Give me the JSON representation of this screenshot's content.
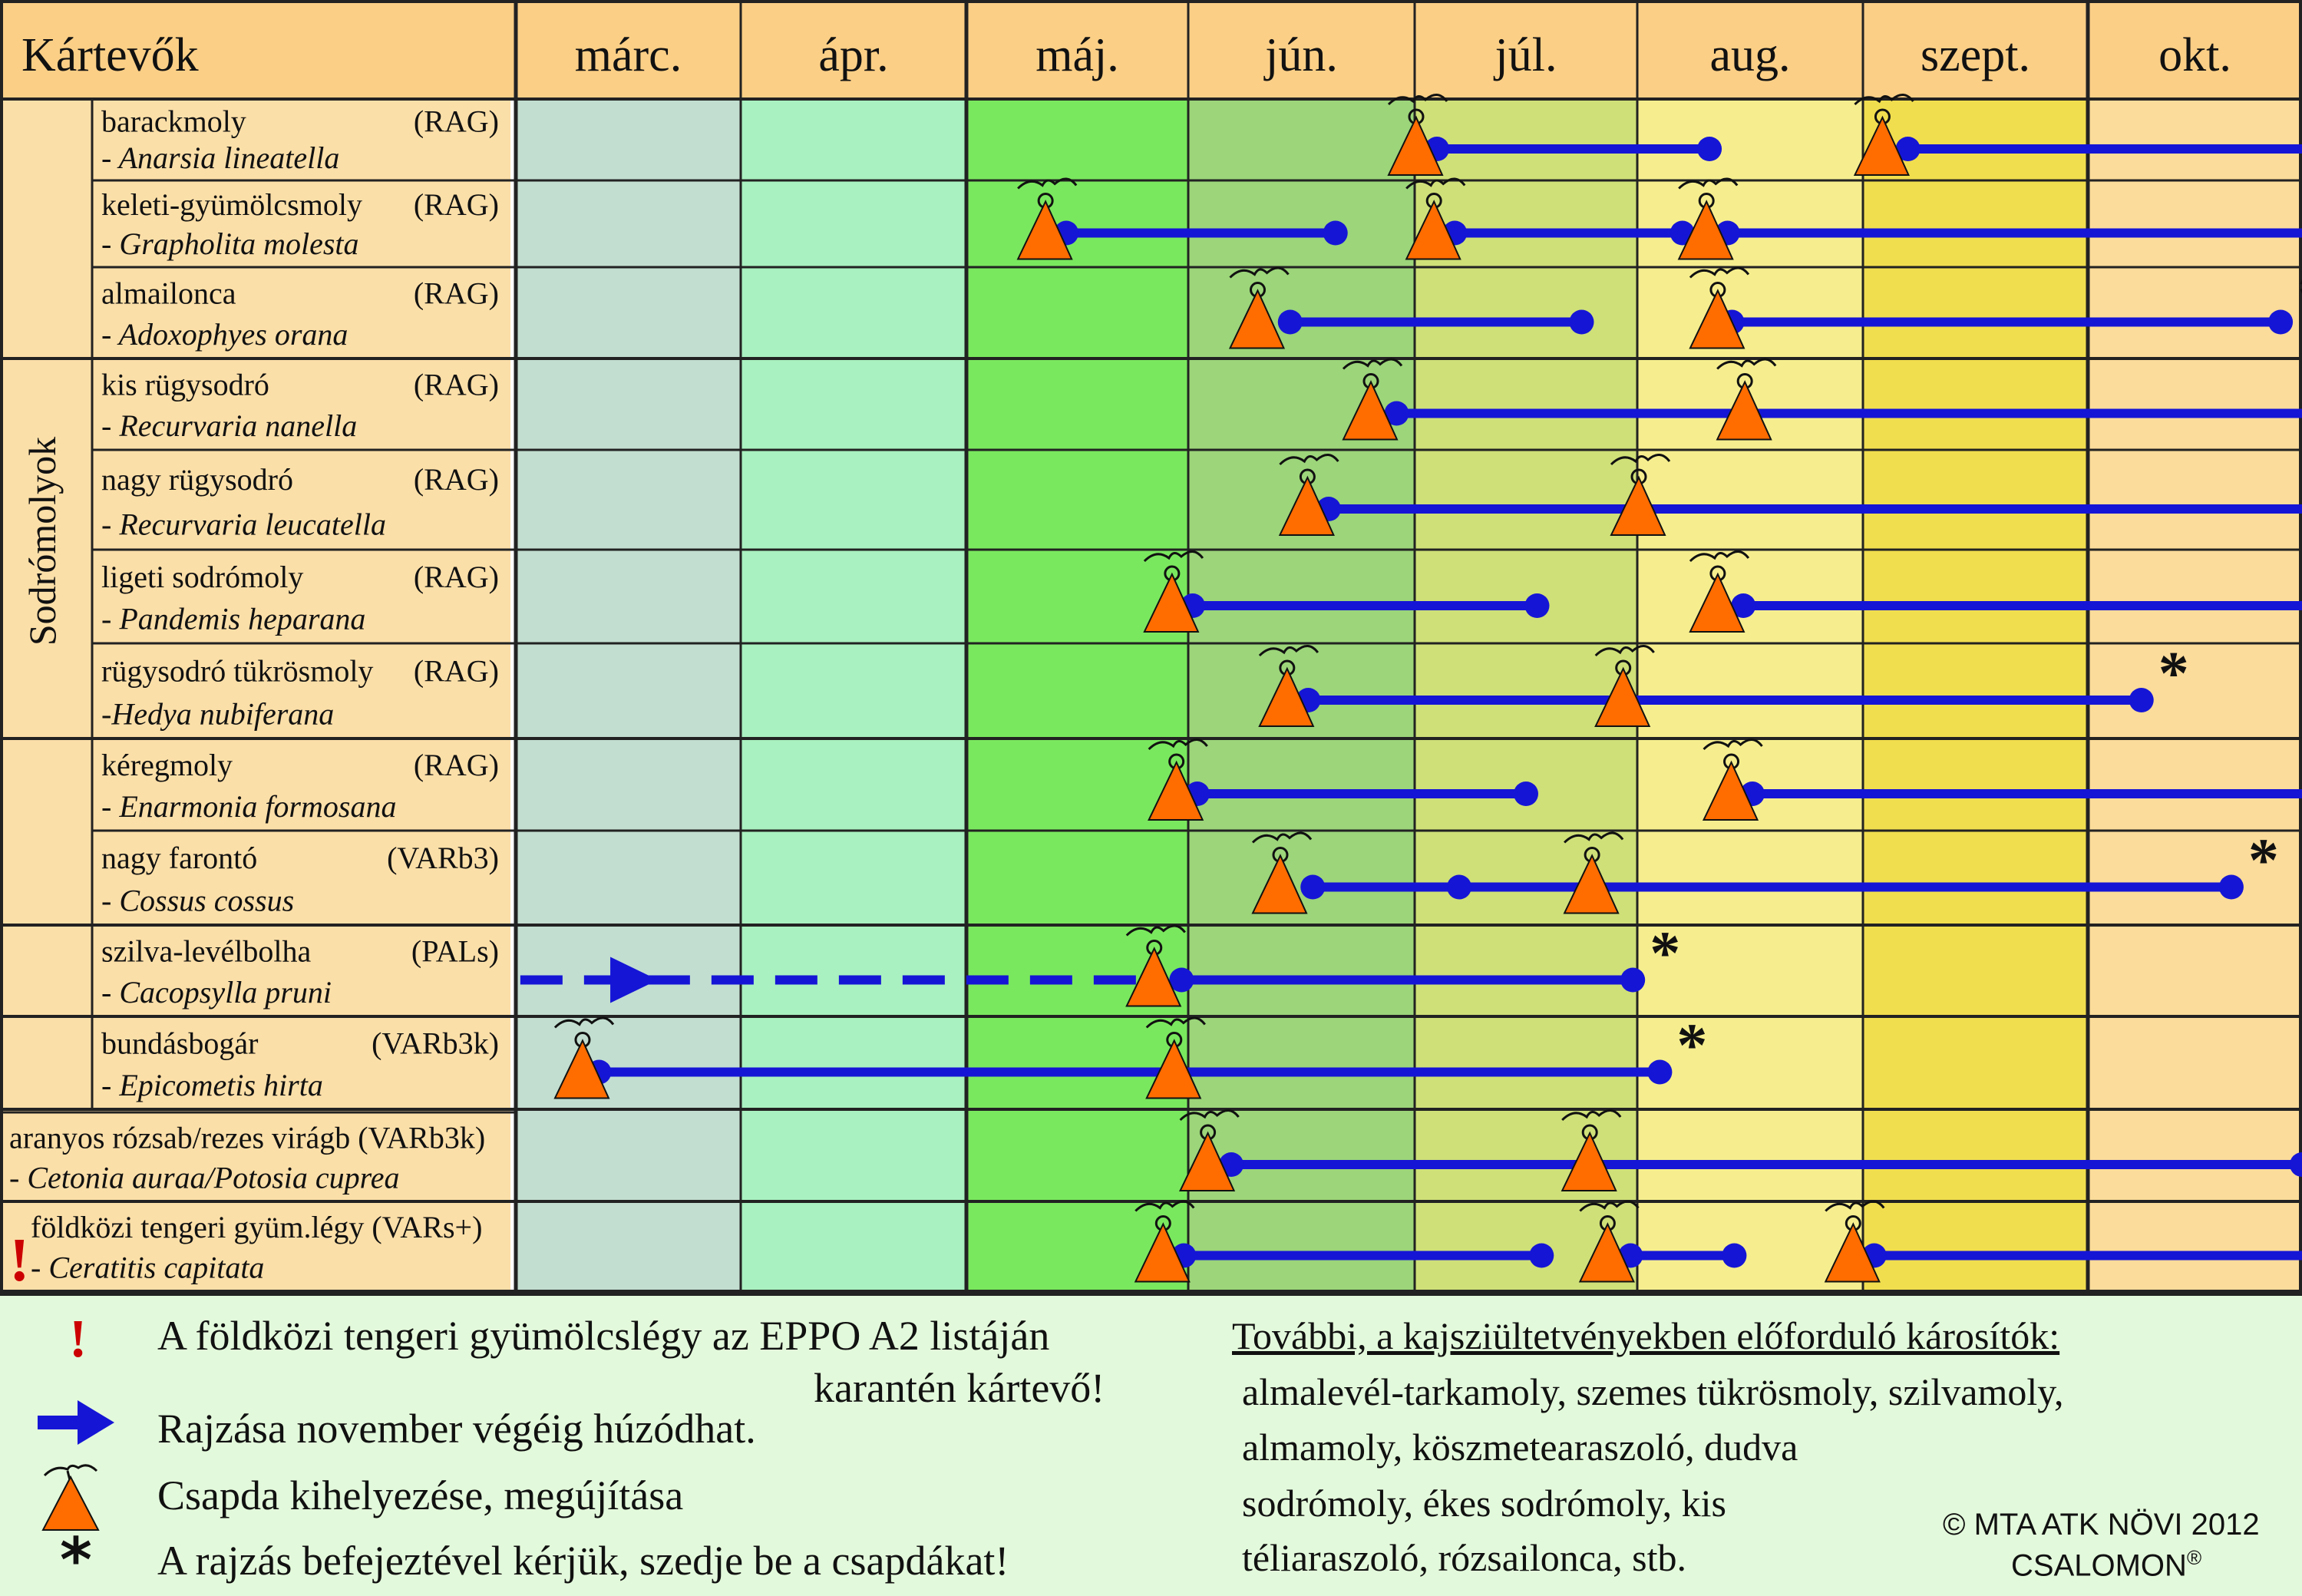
{
  "header": {
    "pests_label": "Kártevők",
    "months": [
      "márc.",
      "ápr.",
      "máj.",
      "jún.",
      "júl.",
      "aug.",
      "szept.",
      "okt."
    ]
  },
  "group_label": "Sodrómolyok",
  "colors": {
    "header_bg": "#fbcf86",
    "label_bg": "#fbdfa8",
    "month_bg": [
      "#c2ded0",
      "#a9f1c0",
      "#7ae85e",
      "#9cd57a",
      "#cfe078",
      "#f6ee8e",
      "#f1de4e",
      "#fbdc9a"
    ],
    "flight_line": "#1515d6",
    "trap": "#ff6c00",
    "warning": "#cc0000"
  },
  "rows": [
    {
      "common": "barackmoly",
      "latin": "- Anarsia lineatella",
      "code": "(RAG)",
      "traps": [
        4.0,
        6.08
      ],
      "flights": [
        [
          4.1,
          5.32
        ],
        [
          6.2,
          8.71
        ]
      ],
      "end_star": true
    },
    {
      "common": "keleti-gyümölcsmoly",
      "latin": "- Grapholita molesta",
      "code": "(RAG)",
      "traps": [
        2.35,
        4.08,
        5.3
      ],
      "flights": [
        [
          2.45,
          3.65
        ],
        [
          4.18,
          5.2
        ],
        [
          5.4,
          9.35
        ]
      ],
      "end_star": true
    },
    {
      "common": "almailonca",
      "latin": "- Adoxophyes orana",
      "code": "(RAG)",
      "traps": [
        3.3,
        5.35
      ],
      "flights": [
        [
          3.45,
          4.75
        ],
        [
          5.42,
          7.9
        ]
      ],
      "end_star": true
    },
    {
      "common": "kis rügysodró",
      "latin": "- Recurvaria nanella",
      "code": "(RAG)",
      "traps": [
        3.8,
        5.47
      ],
      "flights": [
        [
          3.92,
          8.18
        ]
      ],
      "end_star": true
    },
    {
      "common": "nagy rügysodró",
      "latin": "- Recurvaria leucatella",
      "code": "(RAG)",
      "traps": [
        3.52,
        5.0
      ],
      "flights": [
        [
          3.62,
          8.26
        ]
      ],
      "end_star": true
    },
    {
      "common": "ligeti  sodrómoly",
      "latin": "- Pandemis heparana",
      "code": "(RAG)",
      "traps": [
        2.92,
        5.35
      ],
      "flights": [
        [
          3.02,
          4.55
        ],
        [
          5.47,
          8.93
        ]
      ],
      "end_star": true
    },
    {
      "common": "rügysodró tükrösmoly",
      "latin": "-Hedya nubiferana",
      "code": "(RAG)",
      "traps": [
        3.43,
        4.93
      ],
      "flights": [
        [
          3.53,
          7.25
        ]
      ],
      "end_star": true
    },
    {
      "common": "kéregmoly",
      "latin": "- Enarmonia formosana",
      "code": "(RAG)",
      "traps": [
        2.94,
        5.41
      ],
      "flights": [
        [
          3.04,
          4.5
        ],
        [
          5.51,
          8.08
        ]
      ],
      "end_star": true
    },
    {
      "common": "nagy farontó",
      "latin": "- Cossus cossus",
      "code": "(VARb3)",
      "traps": [
        3.4,
        4.79
      ],
      "flights": [
        [
          3.55,
          7.67
        ]
      ],
      "dots": [
        4.2
      ],
      "end_star": true
    },
    {
      "common": "szilva-levélbolha",
      "latin": "- Cacopsylla pruni",
      "code": "(PALs)",
      "traps": [
        2.84
      ],
      "flights": [
        [
          2.97,
          4.98
        ]
      ],
      "dashed": [
        0.02,
        2.84
      ],
      "end_star": true
    },
    {
      "common": "bundásbogár",
      "latin": "- Epicometis hirta",
      "code": "(VARb3k)",
      "traps": [
        0.29,
        2.93
      ],
      "flights": [
        [
          0.37,
          5.1
        ]
      ],
      "end_star": true
    },
    {
      "common": "aranyos rózsab/rezes virágb (VARb3k)",
      "latin": "- Cetonia auraa/Potosia cuprea",
      "code": "",
      "traps": [
        3.08,
        4.78
      ],
      "flights": [
        [
          3.19,
          8.0
        ]
      ],
      "end_star": true
    },
    {
      "common": "földközi tengeri gyüm.légy  (VARs+)",
      "latin": "- Ceratitis capitata",
      "code": "",
      "warning": "!",
      "traps": [
        2.88,
        4.86,
        5.95
      ],
      "flights": [
        [
          2.98,
          4.57
        ],
        [
          4.97,
          5.43
        ]
      ],
      "arrow": [
        6.05,
        9.55
      ],
      "end_star": false
    }
  ],
  "legend": {
    "warning_mark": "!",
    "warning_line1": "A földközi tengeri gyümölcslégy az EPPO A2 listáján",
    "warning_line2": "karantén kártevő!",
    "arrow_text": "Rajzása november végéig húzódhat.",
    "trap_text": "Csapda kihelyezése, megújítása",
    "star_mark": "*",
    "star_text": "A rajzás befejeztével kérjük, szedje be a csapdákat!",
    "further_title": "További, a kajsziültetvényekben előforduló károsítók:",
    "further_lines": [
      "almalevél-tarkamoly, szemes tükrösmoly, szilvamoly,",
      "almamoly, köszmetearaszoló, dudva",
      "sodrómoly, ékes sodrómoly, kis",
      "téliaraszoló, rózsailonca, stb."
    ],
    "copyright": "© MTA ATK NÖVI 2012",
    "brand": "CSALOMON",
    "brand_mark": "®"
  }
}
